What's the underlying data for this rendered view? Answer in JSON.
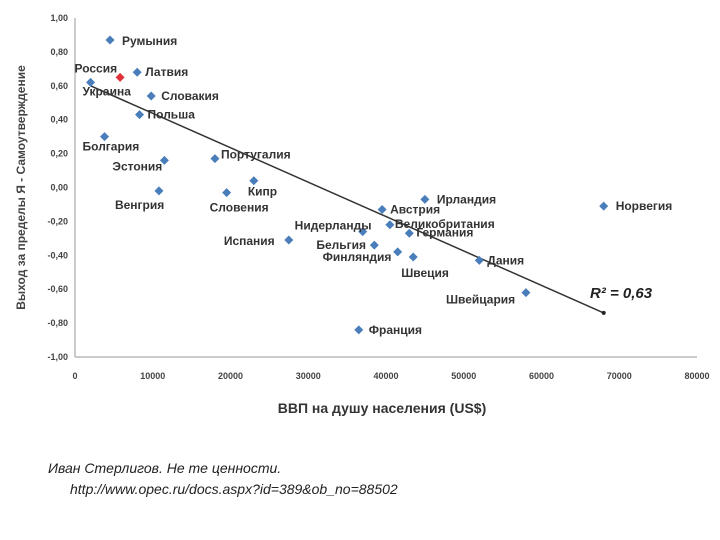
{
  "chart_data": {
    "type": "scatter",
    "xlabel": "ВВП на душу населения (US$)",
    "ylabel": "Выход за пределы Я - Самоутверждение",
    "xlim": [
      0,
      80000
    ],
    "ylim": [
      -1.0,
      1.0
    ],
    "x_ticks": [
      "0",
      "10000",
      "20000",
      "30000",
      "40000",
      "50000",
      "60000",
      "70000",
      "80000"
    ],
    "y_ticks": [
      "1,00",
      "0,80",
      "0,60",
      "0,40",
      "0,20",
      "0,00",
      "-0,20",
      "-0,40",
      "-0,60",
      "-0,80",
      "-1,00"
    ],
    "grid": false,
    "marker_color": "#4a7ebb",
    "highlight_color": "#e0303a",
    "points": [
      {
        "label": "Румыния",
        "x": 4500,
        "y": 0.87
      },
      {
        "label": "Латвия",
        "x": 8000,
        "y": 0.68
      },
      {
        "label": "Россия",
        "x": 5800,
        "y": 0.65,
        "highlight": true
      },
      {
        "label": "Украина",
        "x": 2000,
        "y": 0.62
      },
      {
        "label": "Словакия",
        "x": 9800,
        "y": 0.54
      },
      {
        "label": "Польша",
        "x": 8300,
        "y": 0.43
      },
      {
        "label": "Болгария",
        "x": 3800,
        "y": 0.3
      },
      {
        "label": "Эстония",
        "x": 11500,
        "y": 0.16
      },
      {
        "label": "Португалия",
        "x": 18000,
        "y": 0.17
      },
      {
        "label": "Кипр",
        "x": 23000,
        "y": 0.04
      },
      {
        "label": "Венгрия",
        "x": 10800,
        "y": -0.02
      },
      {
        "label": "Словения",
        "x": 19500,
        "y": -0.03
      },
      {
        "label": "Ирландия",
        "x": 45000,
        "y": -0.07
      },
      {
        "label": "Норвегия",
        "x": 68000,
        "y": -0.11
      },
      {
        "label": "Австрия",
        "x": 39500,
        "y": -0.13
      },
      {
        "label": "Нидерланды",
        "x": 37000,
        "y": -0.26
      },
      {
        "label": "Великобритания",
        "x": 40500,
        "y": -0.22
      },
      {
        "label": "Германия",
        "x": 43000,
        "y": -0.27
      },
      {
        "label": "Испания",
        "x": 27500,
        "y": -0.31
      },
      {
        "label": "Бельгия",
        "x": 38500,
        "y": -0.34
      },
      {
        "label": "Финляндия",
        "x": 41500,
        "y": -0.38
      },
      {
        "label": "Швеция",
        "x": 43500,
        "y": -0.41
      },
      {
        "label": "Дания",
        "x": 52000,
        "y": -0.43
      },
      {
        "label": "Швейцария",
        "x": 58000,
        "y": -0.62
      },
      {
        "label": "Франция",
        "x": 36500,
        "y": -0.84
      }
    ],
    "trendline": {
      "x": [
        2000,
        68000
      ],
      "y": [
        0.6,
        -0.74
      ]
    },
    "annotation": "R² = 0,63"
  },
  "caption": {
    "line1": "Иван Стерлигов. Не те ценности.",
    "line2": "http://www.opec.ru/docs.aspx?id=389&ob_no=88502"
  }
}
